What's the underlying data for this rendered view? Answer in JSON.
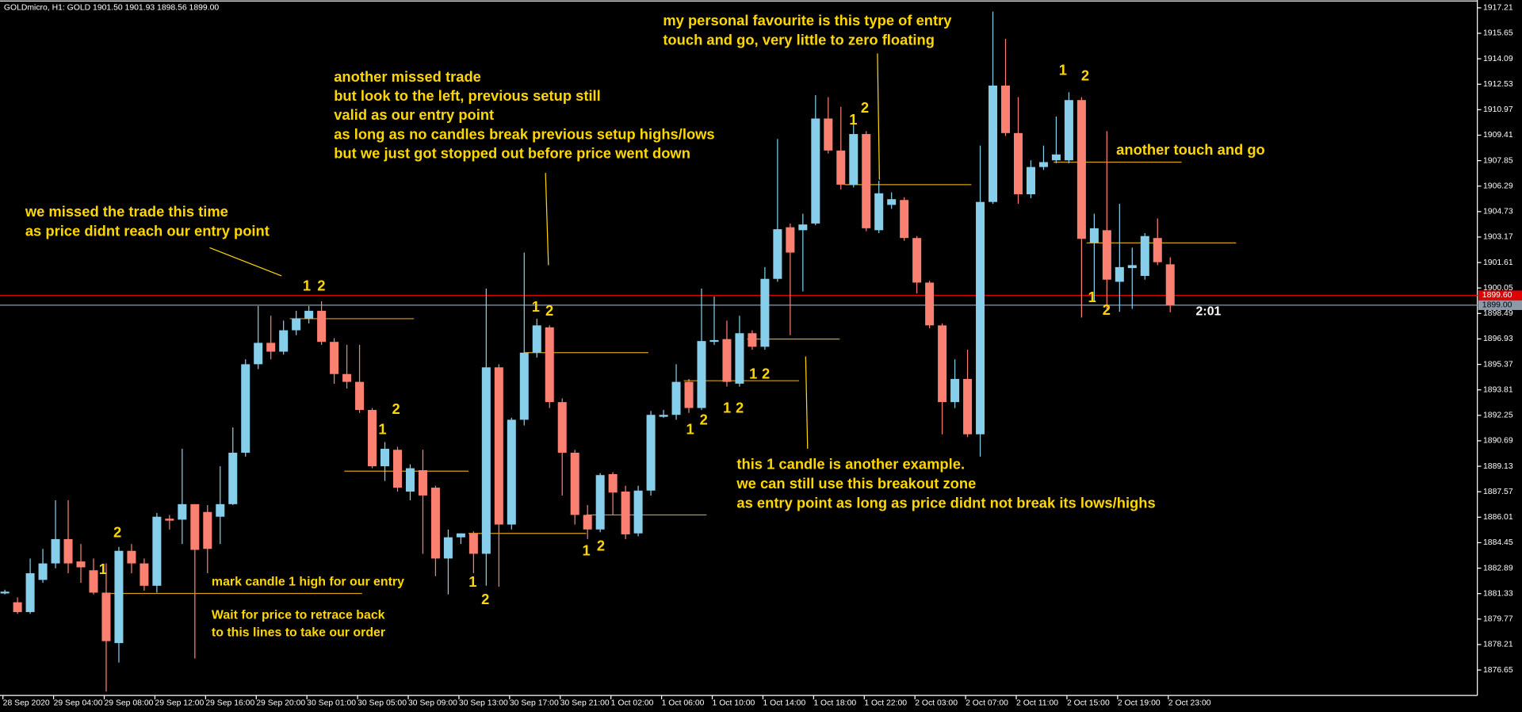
{
  "chart_data": {
    "type": "candlestick",
    "title": "GOLDmicro, H1:  GOLD  1901.50 1901.93 1898.56 1899.00",
    "categories": [
      "28 Sep 2020",
      null,
      null,
      null,
      "29 Sep 04:00",
      null,
      null,
      null,
      "29 Sep 08:00",
      null,
      null,
      null,
      "29 Sep 12:00",
      null,
      null,
      null,
      "29 Sep 16:00",
      null,
      null,
      null,
      "29 Sep 20:00",
      null,
      null,
      null,
      "30 Sep 01:00",
      null,
      null,
      null,
      "30 Sep 05:00",
      null,
      null,
      null,
      "30 Sep 09:00",
      null,
      null,
      null,
      "30 Sep 13:00",
      null,
      null,
      null,
      "30 Sep 17:00",
      null,
      null,
      null,
      "30 Sep 21:00",
      null,
      null,
      null,
      "1 Oct 02:00",
      null,
      null,
      null,
      "1 Oct 06:00",
      null,
      null,
      null,
      "1 Oct 10:00",
      null,
      null,
      null,
      "1 Oct 14:00",
      null,
      null,
      null,
      "1 Oct 18:00",
      null,
      null,
      null,
      "1 Oct 22:00",
      null,
      null,
      null,
      "2 Oct 03:00",
      null,
      null,
      null,
      "2 Oct 07:00",
      null,
      null,
      null,
      "2 Oct 11:00",
      null,
      null,
      null,
      "2 Oct 15:00",
      null,
      null,
      null,
      "2 Oct 19:00",
      null,
      null,
      null,
      "2 Oct 23:00"
    ],
    "open": [
      1881.34,
      1880.8,
      1880.2,
      1882.17,
      1883.18,
      1884.67,
      1883.3,
      1882.76,
      1881.39,
      1878.3,
      1883.95,
      1883.18,
      1881.81,
      1885.92,
      1885.86,
      1886.81,
      1886.33,
      1886.04,
      1886.81,
      1889.96,
      1895.38,
      1896.69,
      1896.15,
      1897.46,
      1898.17,
      1898.65,
      1896.75,
      1894.78,
      1894.3,
      1892.58,
      1889.13,
      1890.14,
      1887.58,
      1888.89,
      1887.82,
      1883.48,
      1884.78,
      1885.02,
      1883.77,
      1895.19,
      1885.56,
      1891.98,
      1896.09,
      1897.64,
      1893.06,
      1889.96,
      1886.15,
      1885.26,
      1888.65,
      1887.58,
      1885.02,
      1887.64,
      1892.16,
      1892.28,
      1894.3,
      1892.7,
      1896.75,
      1896.92,
      1894.19,
      1897.28,
      1896.45,
      1900.61,
      1903.77,
      1903.59,
      1904.0,
      1910.43,
      1908.47,
      1906.38,
      1909.48,
      1903.59,
      1905.14,
      1905.44,
      1903.11,
      1900.38,
      1897.76,
      1893.06,
      1894.48,
      1891.09,
      1905.32,
      1912.45,
      1909.54,
      1905.79,
      1907.46,
      1907.87,
      1907.87,
      1911.56,
      1902.82,
      1903.59,
      1900.43,
      1901.27,
      1900.79,
      1903.11,
      1901.5
    ],
    "high": [
      1881.57,
      1881.1,
      1883.48,
      1884.07,
      1887.05,
      1887.05,
      1884.37,
      1883.48,
      1883.18,
      1884.19,
      1884.37,
      1883.48,
      1886.27,
      1886.15,
      1890.2,
      1886.81,
      1886.75,
      1889.13,
      1891.51,
      1895.68,
      1898.95,
      1898.35,
      1898.05,
      1898.65,
      1898.95,
      1899.24,
      1896.98,
      1896.57,
      1896.57,
      1892.7,
      1890.61,
      1890.32,
      1889.25,
      1890.14,
      1887.94,
      1885.26,
      1885.02,
      1885.14,
      1900.02,
      1895.38,
      1892.1,
      1902.22,
      1898.17,
      1897.76,
      1893.29,
      1890.14,
      1886.75,
      1888.71,
      1888.77,
      1887.94,
      1887.94,
      1892.52,
      1892.58,
      1895.38,
      1894.48,
      1900.02,
      1899.54,
      1898.05,
      1898.35,
      1897.46,
      1901.33,
      1909.18,
      1904.0,
      1904.6,
      1911.86,
      1911.74,
      1911.15,
      1910.55,
      1909.66,
      1906.62,
      1905.91,
      1905.61,
      1903.23,
      1900.49,
      1897.88,
      1895.68,
      1896.27,
      1908.77,
      1916.98,
      1915.31,
      1911.74,
      1907.87,
      1908.77,
      1910.55,
      1912.04,
      1911.74,
      1904.6,
      1909.66,
      1905.2,
      1902.52,
      1903.41,
      1904.31,
      1901.93
    ],
    "low": [
      1881.28,
      1880.09,
      1880.09,
      1881.99,
      1882.88,
      1882.58,
      1881.99,
      1881.28,
      1875.33,
      1877.11,
      1882.58,
      1881.51,
      1881.39,
      1885.26,
      1884.37,
      1877.35,
      1882.58,
      1884.37,
      1886.75,
      1889.72,
      1895.08,
      1895.68,
      1895.97,
      1897.16,
      1897.88,
      1896.57,
      1894.18,
      1893.89,
      1892.4,
      1889.01,
      1888.23,
      1887.58,
      1887.05,
      1883.77,
      1882.4,
      1881.28,
      1884.37,
      1882.58,
      1881.81,
      1881.75,
      1885.26,
      1891.63,
      1895.79,
      1892.7,
      1887.34,
      1885.56,
      1884.67,
      1885.09,
      1886.15,
      1884.67,
      1884.84,
      1887.34,
      1892.1,
      1891.98,
      1892.4,
      1892.58,
      1896.57,
      1894.01,
      1894.01,
      1896.27,
      1896.27,
      1900.43,
      1897.16,
      1899.84,
      1903.89,
      1908.29,
      1906.09,
      1906.21,
      1903.53,
      1903.41,
      1904.9,
      1902.94,
      1899.72,
      1897.58,
      1891.09,
      1892.7,
      1890.92,
      1889.72,
      1905.2,
      1909.36,
      1905.2,
      1905.55,
      1907.28,
      1907.69,
      1907.69,
      1898.24,
      1899.25,
      1898.65,
      1898.59,
      1898.77,
      1900.56,
      1901.45,
      1898.56
    ],
    "close": [
      1881.45,
      1880.2,
      1882.58,
      1883.18,
      1884.67,
      1883.18,
      1882.94,
      1881.39,
      1878.42,
      1883.95,
      1883.18,
      1881.81,
      1886.04,
      1885.8,
      1886.81,
      1884.01,
      1884.07,
      1886.81,
      1889.96,
      1895.38,
      1896.69,
      1896.15,
      1897.46,
      1898.17,
      1898.65,
      1896.75,
      1894.78,
      1894.3,
      1892.58,
      1889.13,
      1890.2,
      1887.82,
      1889.01,
      1887.34,
      1883.48,
      1884.78,
      1885.02,
      1883.77,
      1895.19,
      1885.56,
      1891.98,
      1896.09,
      1897.76,
      1893.06,
      1889.96,
      1886.15,
      1885.26,
      1888.59,
      1887.52,
      1884.96,
      1887.64,
      1892.28,
      1892.28,
      1894.3,
      1892.7,
      1896.8,
      1896.86,
      1894.3,
      1897.28,
      1896.45,
      1900.61,
      1903.65,
      1902.22,
      1903.94,
      1910.43,
      1908.47,
      1906.38,
      1909.48,
      1903.71,
      1905.85,
      1905.49,
      1903.11,
      1900.38,
      1897.76,
      1893.06,
      1894.48,
      1891.09,
      1905.32,
      1912.45,
      1909.54,
      1905.79,
      1907.46,
      1907.76,
      1908.23,
      1911.56,
      1903.06,
      1903.71,
      1900.56,
      1901.33,
      1901.45,
      1903.23,
      1901.63,
      1899.0
    ],
    "up_color": "#87ceeb",
    "down_color": "#fa8072",
    "ylim": [
      1875.09,
      1917.69
    ],
    "yticks": [
      1917.21,
      1915.65,
      1914.09,
      1912.53,
      1910.97,
      1909.41,
      1907.85,
      1906.29,
      1904.73,
      1903.17,
      1901.61,
      1900.05,
      1898.49,
      1896.93,
      1895.37,
      1893.81,
      1892.25,
      1890.69,
      1889.13,
      1887.57,
      1886.01,
      1884.45,
      1882.89,
      1881.33,
      1879.77,
      1878.21,
      1876.65
    ],
    "grid": false,
    "bid": {
      "value": 1899,
      "label": "1899.00"
    },
    "ask": {
      "value": 1899.6,
      "label": "1899.60"
    },
    "bid_color": "#8c9aa8",
    "ask_color": "#e00000",
    "level_color": "#d4a017",
    "levels": [
      {
        "price": 1881.34,
        "from": 7.9,
        "to": 28.2
      },
      {
        "price": 1898.17,
        "from": 22.5,
        "to": 32.3
      },
      {
        "price": 1888.83,
        "from": 26.8,
        "to": 36.6
      },
      {
        "price": 1885.02,
        "from": 36.6,
        "to": 45.9
      },
      {
        "price": 1896.09,
        "from": 41,
        "to": 50.8
      },
      {
        "price": 1886.15,
        "from": 45.9,
        "to": 55.4
      },
      {
        "price": 1894.37,
        "from": 53.6,
        "to": 62.7
      },
      {
        "price": 1896.92,
        "from": 58.6,
        "to": 65.9
      },
      {
        "price": 1906.38,
        "from": 66.3,
        "to": 76.3
      },
      {
        "price": 1907.76,
        "from": 82.8,
        "to": 92.9
      },
      {
        "price": 1902.81,
        "from": 85.4,
        "to": 97.2
      }
    ],
    "annotation_color": "#ffd700",
    "annotations": [
      {
        "lines": [
          "we missed the trade this time",
          "as price didnt reach our entry point"
        ]
      },
      {
        "lines": [
          "another missed trade",
          "but look to the left, previous setup still",
          "valid as our entry point",
          "as long as no candles break previous setup highs/lows",
          "but we just got stopped out before price went down"
        ]
      },
      {
        "lines": [
          "my personal favourite is this type of entry",
          "touch and go, very little to zero floating"
        ]
      },
      {
        "lines": [
          "another touch and go"
        ]
      },
      {
        "lines": [
          "mark candle 1 high for our entry"
        ]
      },
      {
        "lines": [
          "Wait for price to retrace back",
          "to this lines to take our order"
        ]
      },
      {
        "lines": [
          "this 1 candle is another example.",
          "we can still use this breakout zone",
          "as entry point as long as price didnt not break its lows/highs"
        ]
      }
    ],
    "markers": [
      "1",
      "2",
      "1",
      "2",
      "1",
      "2",
      "1",
      "2",
      "1",
      "2",
      "1",
      "2",
      "1",
      "2",
      "1",
      "2",
      "1",
      "2",
      "1",
      "2",
      "1",
      "2",
      "1",
      "2"
    ],
    "timer": "2:01"
  }
}
